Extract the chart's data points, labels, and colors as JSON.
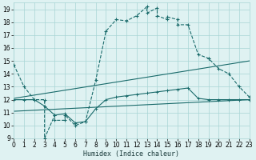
{
  "xlabel": "Humidex (Indice chaleur)",
  "bg_color": "#dff2f2",
  "grid_color": "#a8d4d4",
  "line_color": "#1a6b6b",
  "xlim": [
    0,
    23
  ],
  "ylim": [
    9,
    19.5
  ],
  "yticks": [
    9,
    10,
    11,
    12,
    13,
    14,
    15,
    16,
    17,
    18,
    19
  ],
  "xticks": [
    0,
    1,
    2,
    3,
    4,
    5,
    6,
    7,
    8,
    9,
    10,
    11,
    12,
    13,
    14,
    15,
    16,
    17,
    18,
    19,
    20,
    21,
    22,
    23
  ],
  "curve1_x": [
    0,
    1,
    2,
    3,
    3,
    4,
    4,
    5,
    5,
    6,
    7,
    8,
    9,
    10,
    11,
    12,
    13,
    13,
    14,
    14,
    15,
    15,
    16,
    16,
    17,
    18,
    19,
    19,
    20,
    21,
    22,
    23
  ],
  "curve1_y": [
    14.7,
    13.0,
    12.0,
    12.0,
    9.0,
    10.8,
    10.4,
    10.4,
    10.8,
    10.0,
    10.3,
    13.5,
    17.3,
    18.2,
    18.1,
    18.5,
    19.2,
    18.7,
    19.1,
    18.5,
    18.2,
    18.4,
    18.2,
    17.8,
    17.8,
    15.5,
    15.2,
    15.2,
    14.4,
    14.0,
    13.0,
    12.2
  ],
  "curve2_x": [
    0,
    1,
    2,
    3,
    4,
    5,
    6,
    7,
    8,
    9,
    10,
    11,
    12,
    13,
    14,
    15,
    16,
    17,
    18,
    19,
    20,
    21,
    22,
    23
  ],
  "curve2_y": [
    12.0,
    12.0,
    12.0,
    11.5,
    10.8,
    10.9,
    10.2,
    10.3,
    11.3,
    12.0,
    12.2,
    12.3,
    12.4,
    12.5,
    12.6,
    12.7,
    12.8,
    12.9,
    12.1,
    12.0,
    12.0,
    12.0,
    12.0,
    12.0
  ],
  "line1_x": [
    0,
    23
  ],
  "line1_y": [
    12.1,
    15.0
  ],
  "line2_x": [
    0,
    23
  ],
  "line2_y": [
    11.1,
    12.0
  ]
}
